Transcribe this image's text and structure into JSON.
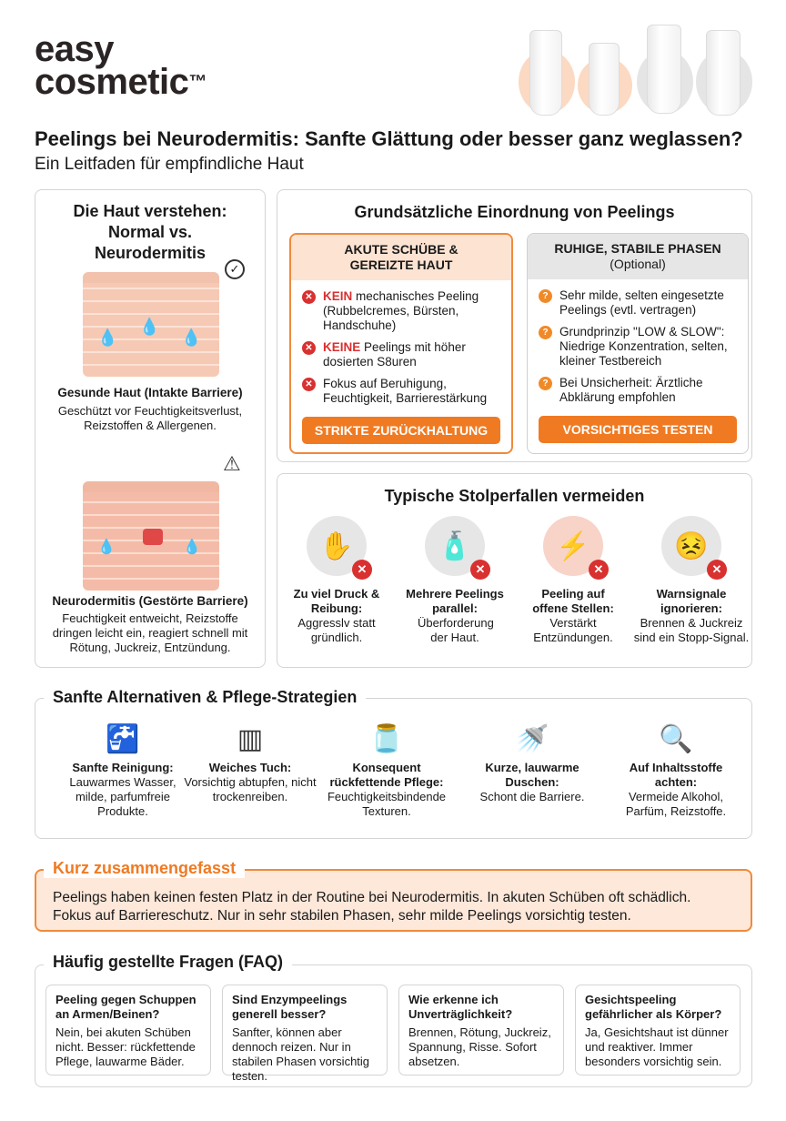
{
  "brand": {
    "logo_line1": "easy",
    "logo_line2": "cosmetic",
    "logo_tm": "™"
  },
  "header": {
    "title": "Peelings bei Neurodermitis: Sanfte Glättung oder besser ganz weglassen?",
    "subtitle": "Ein Leitfaden für empfindliche Haut"
  },
  "colors": {
    "accent": "#f07a22",
    "danger": "#d93030",
    "accent_bg": "#fde8da",
    "neutral_bg": "#e6e6e6"
  },
  "skin": {
    "title": "Die Haut verstehen: Normal vs. Neurodermitis",
    "healthy_label": "Gesunde Haut (Intakte Barriere)",
    "healthy_text": "Geschützt vor Feuchtigkeitsverlust, Reizstoffen & Allergenen.",
    "healthy_icon": "check-circle-icon",
    "damaged_label": "Neurodermitis (Gestörte Barriere)",
    "damaged_text": "Feuchtigkeit entweicht, Reizstoffe dringen leicht ein, reagiert schnell mit Rötung, Juckreiz, Entzündung.",
    "damaged_icon": "warning-icon"
  },
  "classification": {
    "title": "Grundsätzliche Einordnung von Peelings",
    "acute": {
      "title": "AKUTE SCHÜBE & GEREIZTE HAUT",
      "items": [
        {
          "strong": "KEIN",
          "text": " mechanisches Peeling (Rubbelcremes, Bürsten, Handschuhe)"
        },
        {
          "strong": "KEINE",
          "text": " Peelings mit höher dosierten S8uren"
        },
        {
          "strong": "",
          "text": "Fokus auf Beruhigung, Feuchtigkeit, Barrierestärkung"
        }
      ],
      "button": "STRIKTE ZURÜCKHALTUNG"
    },
    "stable": {
      "title": "RUHIGE, STABILE PHASEN",
      "subtitle": "(Optional)",
      "items": [
        "Sehr milde, selten eingesetzte Peelings (evtl. vertragen)",
        "Grundprinzip \"LOW & SLOW\": Niedrige Konzentration, selten, kleiner Testbereich",
        "Bei Unsicherheit: Ärztliche Abklärung empfohlen"
      ],
      "button": "VORSICHTIGES TESTEN"
    }
  },
  "pitfalls": {
    "title": "Typische Stolperfallen vermeiden",
    "items": [
      {
        "title": "Zu viel Druck & Reibung:",
        "text": "Aggresslv statt gründlich.",
        "icon": "hand-scrubbing-icon"
      },
      {
        "title": "Mehrere Peelings parallel:",
        "text": "Überforderung der Haut.",
        "icon": "bottles-icon"
      },
      {
        "title": "Peeling auf offene Stellen:",
        "text": "Verstärkt Entzündungen.",
        "icon": "wound-icon"
      },
      {
        "title": "Warnsignale ignorieren:",
        "text": "Brennen & Juckreiz sind ein Stopp-Signal.",
        "icon": "irritated-face-icon"
      }
    ]
  },
  "alternatives": {
    "title": "Sanfte Alternativen & Pflege-Strategien",
    "items": [
      {
        "title": "Sanfte Reinigung:",
        "text": "Lauwarmes Wasser, milde, parfumfreie Produkte.",
        "icon": "faucet-icon"
      },
      {
        "title": "Weiches Tuch:",
        "text": "Vorsichtig abtupfen, nicht trockenreiben.",
        "icon": "towel-icon"
      },
      {
        "title": "Konsequent rückfettende Pflege:",
        "text": "Feuchtigkeitsbindende Texturen.",
        "icon": "cream-jar-icon"
      },
      {
        "title": "Kurze, lauwarme Duschen:",
        "text": "Schont die Barriere.",
        "icon": "shower-icon"
      },
      {
        "title": "Auf Inhaltsstoffe achten:",
        "text": "Vermeide Alkohol, Parfüm, Reizstoffe.",
        "icon": "magnifier-flask-icon"
      }
    ]
  },
  "summary": {
    "title": "Kurz zusammengefasst",
    "text": "Peelings haben keinen festen Platz in der Routine bei Neurodermitis. In akuten Schüben oft schädlich. Fokus auf Barriereschutz. Nur in sehr stabilen Phasen, sehr milde Peelings vorsichtig testen."
  },
  "faq": {
    "title": "Häufig gestellte Fragen (FAQ)",
    "items": [
      {
        "q": "Peeling gegen Schuppen an Armen/Beinen?",
        "a": "Nein, bei akuten Schüben nicht. Besser: rückfettende Pflege, lauwarme Bäder."
      },
      {
        "q": "Sind Enzympeelings generell besser?",
        "a": "Sanfter, können aber dennoch reizen. Nur in stabilen Phasen vorsichtig testen."
      },
      {
        "q": "Wie erkenne ich Unverträglichkeit?",
        "a": "Brennen, Rötung, Juckreiz, Spannung, Risse. Sofort absetzen."
      },
      {
        "q": "Gesichtspeeling gefährlicher als Körper?",
        "a": "Ja, Gesichtshaut ist dünner und reaktiver. Immer besonders vorsichtig sein."
      }
    ]
  }
}
